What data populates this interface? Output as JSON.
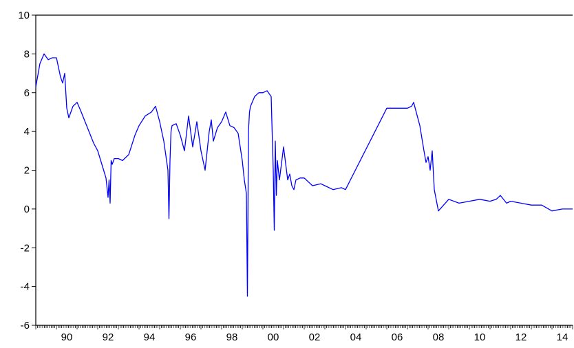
{
  "chart_data": {
    "type": "line",
    "title": "",
    "xlabel": "",
    "ylabel": "",
    "xlim": [
      1989,
      2015
    ],
    "ylim": [
      -6,
      10
    ],
    "grid": false,
    "legend": "none",
    "line_color": "#0000ff",
    "x_ticks": [
      {
        "value": 1990,
        "label": "90"
      },
      {
        "value": 1992,
        "label": "92"
      },
      {
        "value": 1994,
        "label": "94"
      },
      {
        "value": 1996,
        "label": "96"
      },
      {
        "value": 1998,
        "label": "98"
      },
      {
        "value": 2000,
        "label": "00"
      },
      {
        "value": 2002,
        "label": "02"
      },
      {
        "value": 2004,
        "label": "04"
      },
      {
        "value": 2006,
        "label": "06"
      },
      {
        "value": 2008,
        "label": "08"
      },
      {
        "value": 2010,
        "label": "10"
      },
      {
        "value": 2012,
        "label": "12"
      },
      {
        "value": 2014,
        "label": "14"
      }
    ],
    "y_ticks": [
      {
        "value": 10,
        "label": "10"
      },
      {
        "value": 8,
        "label": "8"
      },
      {
        "value": 6,
        "label": "6"
      },
      {
        "value": 4,
        "label": "4"
      },
      {
        "value": 2,
        "label": "2"
      },
      {
        "value": 0,
        "label": "0"
      },
      {
        "value": -2,
        "label": "-2"
      },
      {
        "value": -4,
        "label": "-4"
      },
      {
        "value": -6,
        "label": "-6"
      }
    ],
    "series": [
      {
        "x": [
          1989.0,
          1989.2,
          1989.4,
          1989.6,
          1989.8,
          1990.0,
          1990.2,
          1990.3,
          1990.4,
          1990.5,
          1990.6,
          1990.8,
          1991.0,
          1991.2,
          1991.5,
          1991.8,
          1992.0,
          1992.2,
          1992.4,
          1992.5,
          1992.55,
          1992.6,
          1992.65,
          1992.7,
          1992.8,
          1993.0,
          1993.2,
          1993.5,
          1993.8,
          1994.0,
          1994.3,
          1994.6,
          1994.8,
          1995.0,
          1995.2,
          1995.4,
          1995.45,
          1995.5,
          1995.55,
          1995.6,
          1995.8,
          1996.0,
          1996.2,
          1996.4,
          1996.6,
          1996.8,
          1997.0,
          1997.2,
          1997.4,
          1997.5,
          1997.6,
          1997.8,
          1998.0,
          1998.2,
          1998.4,
          1998.6,
          1998.8,
          1999.0,
          1999.1,
          1999.2,
          1999.25,
          1999.3,
          1999.35,
          1999.4,
          1999.6,
          1999.8,
          2000.0,
          2000.2,
          2000.4,
          2000.5,
          2000.55,
          2000.6,
          2000.65,
          2000.7,
          2000.8,
          2001.0,
          2001.2,
          2001.3,
          2001.4,
          2001.5,
          2001.6,
          2001.8,
          2002.0,
          2002.4,
          2002.8,
          2003.0,
          2003.4,
          2003.8,
          2004.0,
          2006.0,
          2007.0,
          2007.2,
          2007.3,
          2007.5,
          2007.6,
          2007.8,
          2007.9,
          2008.0,
          2008.1,
          2008.2,
          2008.3,
          2008.5,
          2009.0,
          2009.5,
          2010.0,
          2010.5,
          2011.0,
          2011.3,
          2011.5,
          2011.8,
          2012.0,
          2012.5,
          2013.0,
          2013.5,
          2014.0,
          2014.5,
          2015.0
        ],
        "values": [
          6.3,
          7.5,
          8.0,
          7.7,
          7.8,
          7.8,
          6.8,
          6.5,
          7.0,
          5.2,
          4.7,
          5.3,
          5.5,
          5.0,
          4.2,
          3.4,
          3.0,
          2.3,
          1.6,
          0.6,
          1.5,
          0.3,
          2.5,
          2.3,
          2.6,
          2.6,
          2.5,
          2.8,
          3.8,
          4.3,
          4.8,
          5.0,
          5.3,
          4.5,
          3.5,
          2.0,
          -0.5,
          2.5,
          4.0,
          4.3,
          4.4,
          3.8,
          3.0,
          4.8,
          3.2,
          4.5,
          3.0,
          2.0,
          4.0,
          4.6,
          3.5,
          4.2,
          4.5,
          5.0,
          4.3,
          4.2,
          3.9,
          2.5,
          1.5,
          0.8,
          -4.5,
          4.0,
          5.0,
          5.3,
          5.8,
          6.0,
          6.0,
          6.1,
          5.8,
          2.0,
          -1.1,
          3.5,
          0.7,
          2.5,
          1.5,
          3.2,
          1.5,
          1.8,
          1.2,
          1.0,
          1.5,
          1.6,
          1.6,
          1.2,
          1.3,
          1.2,
          1.0,
          1.1,
          1.0,
          5.2,
          5.2,
          5.3,
          5.5,
          4.7,
          4.3,
          3.0,
          2.4,
          2.7,
          2.0,
          3.0,
          1.0,
          -0.1,
          0.5,
          0.3,
          0.4,
          0.5,
          0.4,
          0.5,
          0.7,
          0.3,
          0.4,
          0.3,
          0.2,
          0.2,
          -0.1,
          0.0,
          0.0
        ]
      }
    ]
  }
}
